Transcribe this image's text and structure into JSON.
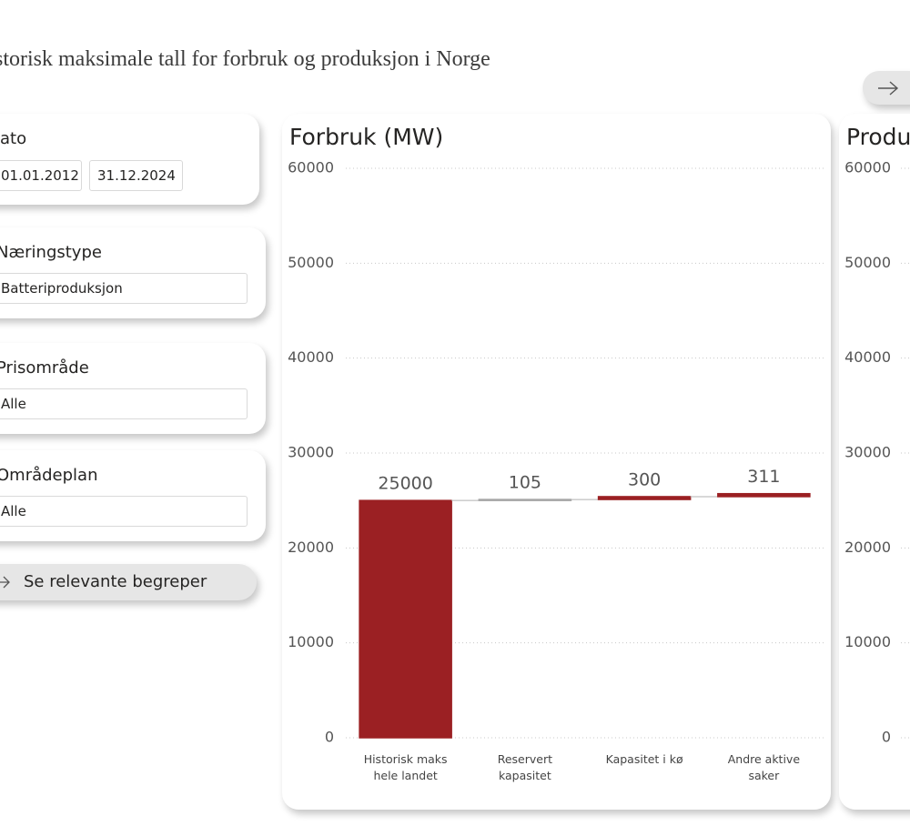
{
  "header": {
    "title": "storisk maksimale tall for forbruk og produksjon i Norge"
  },
  "filters": {
    "date": {
      "label": "ato",
      "start": "01.01.2012",
      "end": "31.12.2024"
    },
    "slicers": [
      {
        "label": "Næringstype",
        "value": "Batteriproduksjon"
      },
      {
        "label": "Prisområde",
        "value": "Alle"
      },
      {
        "label": "Områdeplan",
        "value": "Alle"
      }
    ]
  },
  "button": {
    "label": "Se relevante begreper"
  },
  "chart_data": [
    {
      "type": "waterfall",
      "title": "Forbruk (MW)",
      "categories": [
        "Historisk maks hele landet",
        "Reservert kapasitet",
        "Kapasitet i kø",
        "Andre aktive saker"
      ],
      "values": [
        25000,
        105,
        300,
        311
      ],
      "colors": [
        "#9b2023",
        "#a6a6a6",
        "#9b2023",
        "#9b2023"
      ],
      "ylim": [
        0,
        60000
      ],
      "yticks": [
        0,
        10000,
        20000,
        30000,
        40000,
        50000,
        60000
      ],
      "grid": true
    },
    {
      "type": "bar",
      "title": "Produ",
      "ylim": [
        0,
        60000
      ],
      "yticks": [
        0,
        10000,
        20000,
        30000,
        40000,
        50000,
        60000
      ],
      "grid": true
    }
  ]
}
